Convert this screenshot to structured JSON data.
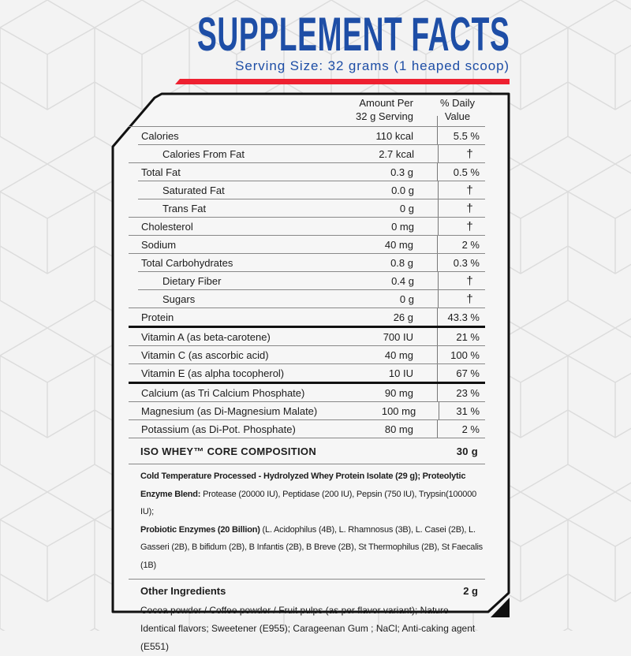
{
  "colors": {
    "title": "#1e4ea6",
    "accent_bar": "#ee2030",
    "border": "#111111"
  },
  "header": {
    "title": "SUPPLEMENT FACTS",
    "serving_size": "Serving Size: 32 grams (1 heaped scoop)"
  },
  "table": {
    "columns": {
      "amount_line1": "Amount Per",
      "amount_line2": "32 g Serving",
      "dv_line1": "% Daily",
      "dv_line2": "Value"
    },
    "macros": [
      {
        "label": "Calories",
        "amount": "110 kcal",
        "dv": "5.5 %",
        "indent": false
      },
      {
        "label": "Calories From Fat",
        "amount": "2.7 kcal",
        "dv": "†",
        "indent": true
      },
      {
        "label": "Total Fat",
        "amount": "0.3 g",
        "dv": "0.5 %",
        "indent": false
      },
      {
        "label": "Saturated Fat",
        "amount": "0.0 g",
        "dv": "†",
        "indent": true
      },
      {
        "label": "Trans Fat",
        "amount": "0 g",
        "dv": "†",
        "indent": true
      },
      {
        "label": "Cholesterol",
        "amount": "0 mg",
        "dv": "†",
        "indent": false
      },
      {
        "label": "Sodium",
        "amount": "40 mg",
        "dv": "2 %",
        "indent": false
      },
      {
        "label": "Total Carbohydrates",
        "amount": "0.8 g",
        "dv": "0.3 %",
        "indent": false
      },
      {
        "label": "Dietary Fiber",
        "amount": "0.4 g",
        "dv": "†",
        "indent": true
      },
      {
        "label": "Sugars",
        "amount": "0 g",
        "dv": "†",
        "indent": true
      },
      {
        "label": "Protein",
        "amount": "26 g",
        "dv": "43.3 %",
        "indent": false
      }
    ],
    "vitamins": [
      {
        "label": "Vitamin A (as beta-carotene)",
        "amount": "700 IU",
        "dv": "21 %"
      },
      {
        "label": "Vitamin C (as ascorbic acid)",
        "amount": "40 mg",
        "dv": "100 %"
      },
      {
        "label": "Vitamin E (as alpha tocopherol)",
        "amount": "10 IU",
        "dv": "67 %"
      }
    ],
    "minerals": [
      {
        "label": "Calcium (as Tri Calcium Phosphate)",
        "amount": "90 mg",
        "dv": "23 %"
      },
      {
        "label": "Magnesium (as Di-Magnesium Malate)",
        "amount": "100 mg",
        "dv": "31 %"
      },
      {
        "label": "Potassium (as Di-Pot. Phosphate)",
        "amount": "80 mg",
        "dv": "2 %"
      }
    ]
  },
  "composition": {
    "title": "ISO WHEY™ CORE COMPOSITION",
    "amount": "30 g",
    "b1": "Cold Temperature Processed - Hydrolyzed Whey Protein Isolate (29 g); Proteolytic Enzyme Blend:",
    "t1": " Protease (20000 IU), Peptidase (200 IU), Pepsin (750 IU), Trypsin(100000 IU);",
    "b2": "Probiotic Enzymes (20 Billion)",
    "t2": " (L. Acidophilus (4B), L. Rhamnosus (3B), L. Casei (2B), L. Gasseri (2B), B bifidum (2B), B Infantis (2B), B Breve (2B), St Thermophilus (2B), St Faecalis (1B)"
  },
  "other": {
    "title": "Other Ingredients",
    "amount": "2 g",
    "text": "Cocoa powder / Coffee powder / Fruit pulps (as per flavor variant); Nature Identical flavors; Sweetener (E955); Carageenan Gum ; NaCl;  Anti-caking agent (E551)"
  }
}
